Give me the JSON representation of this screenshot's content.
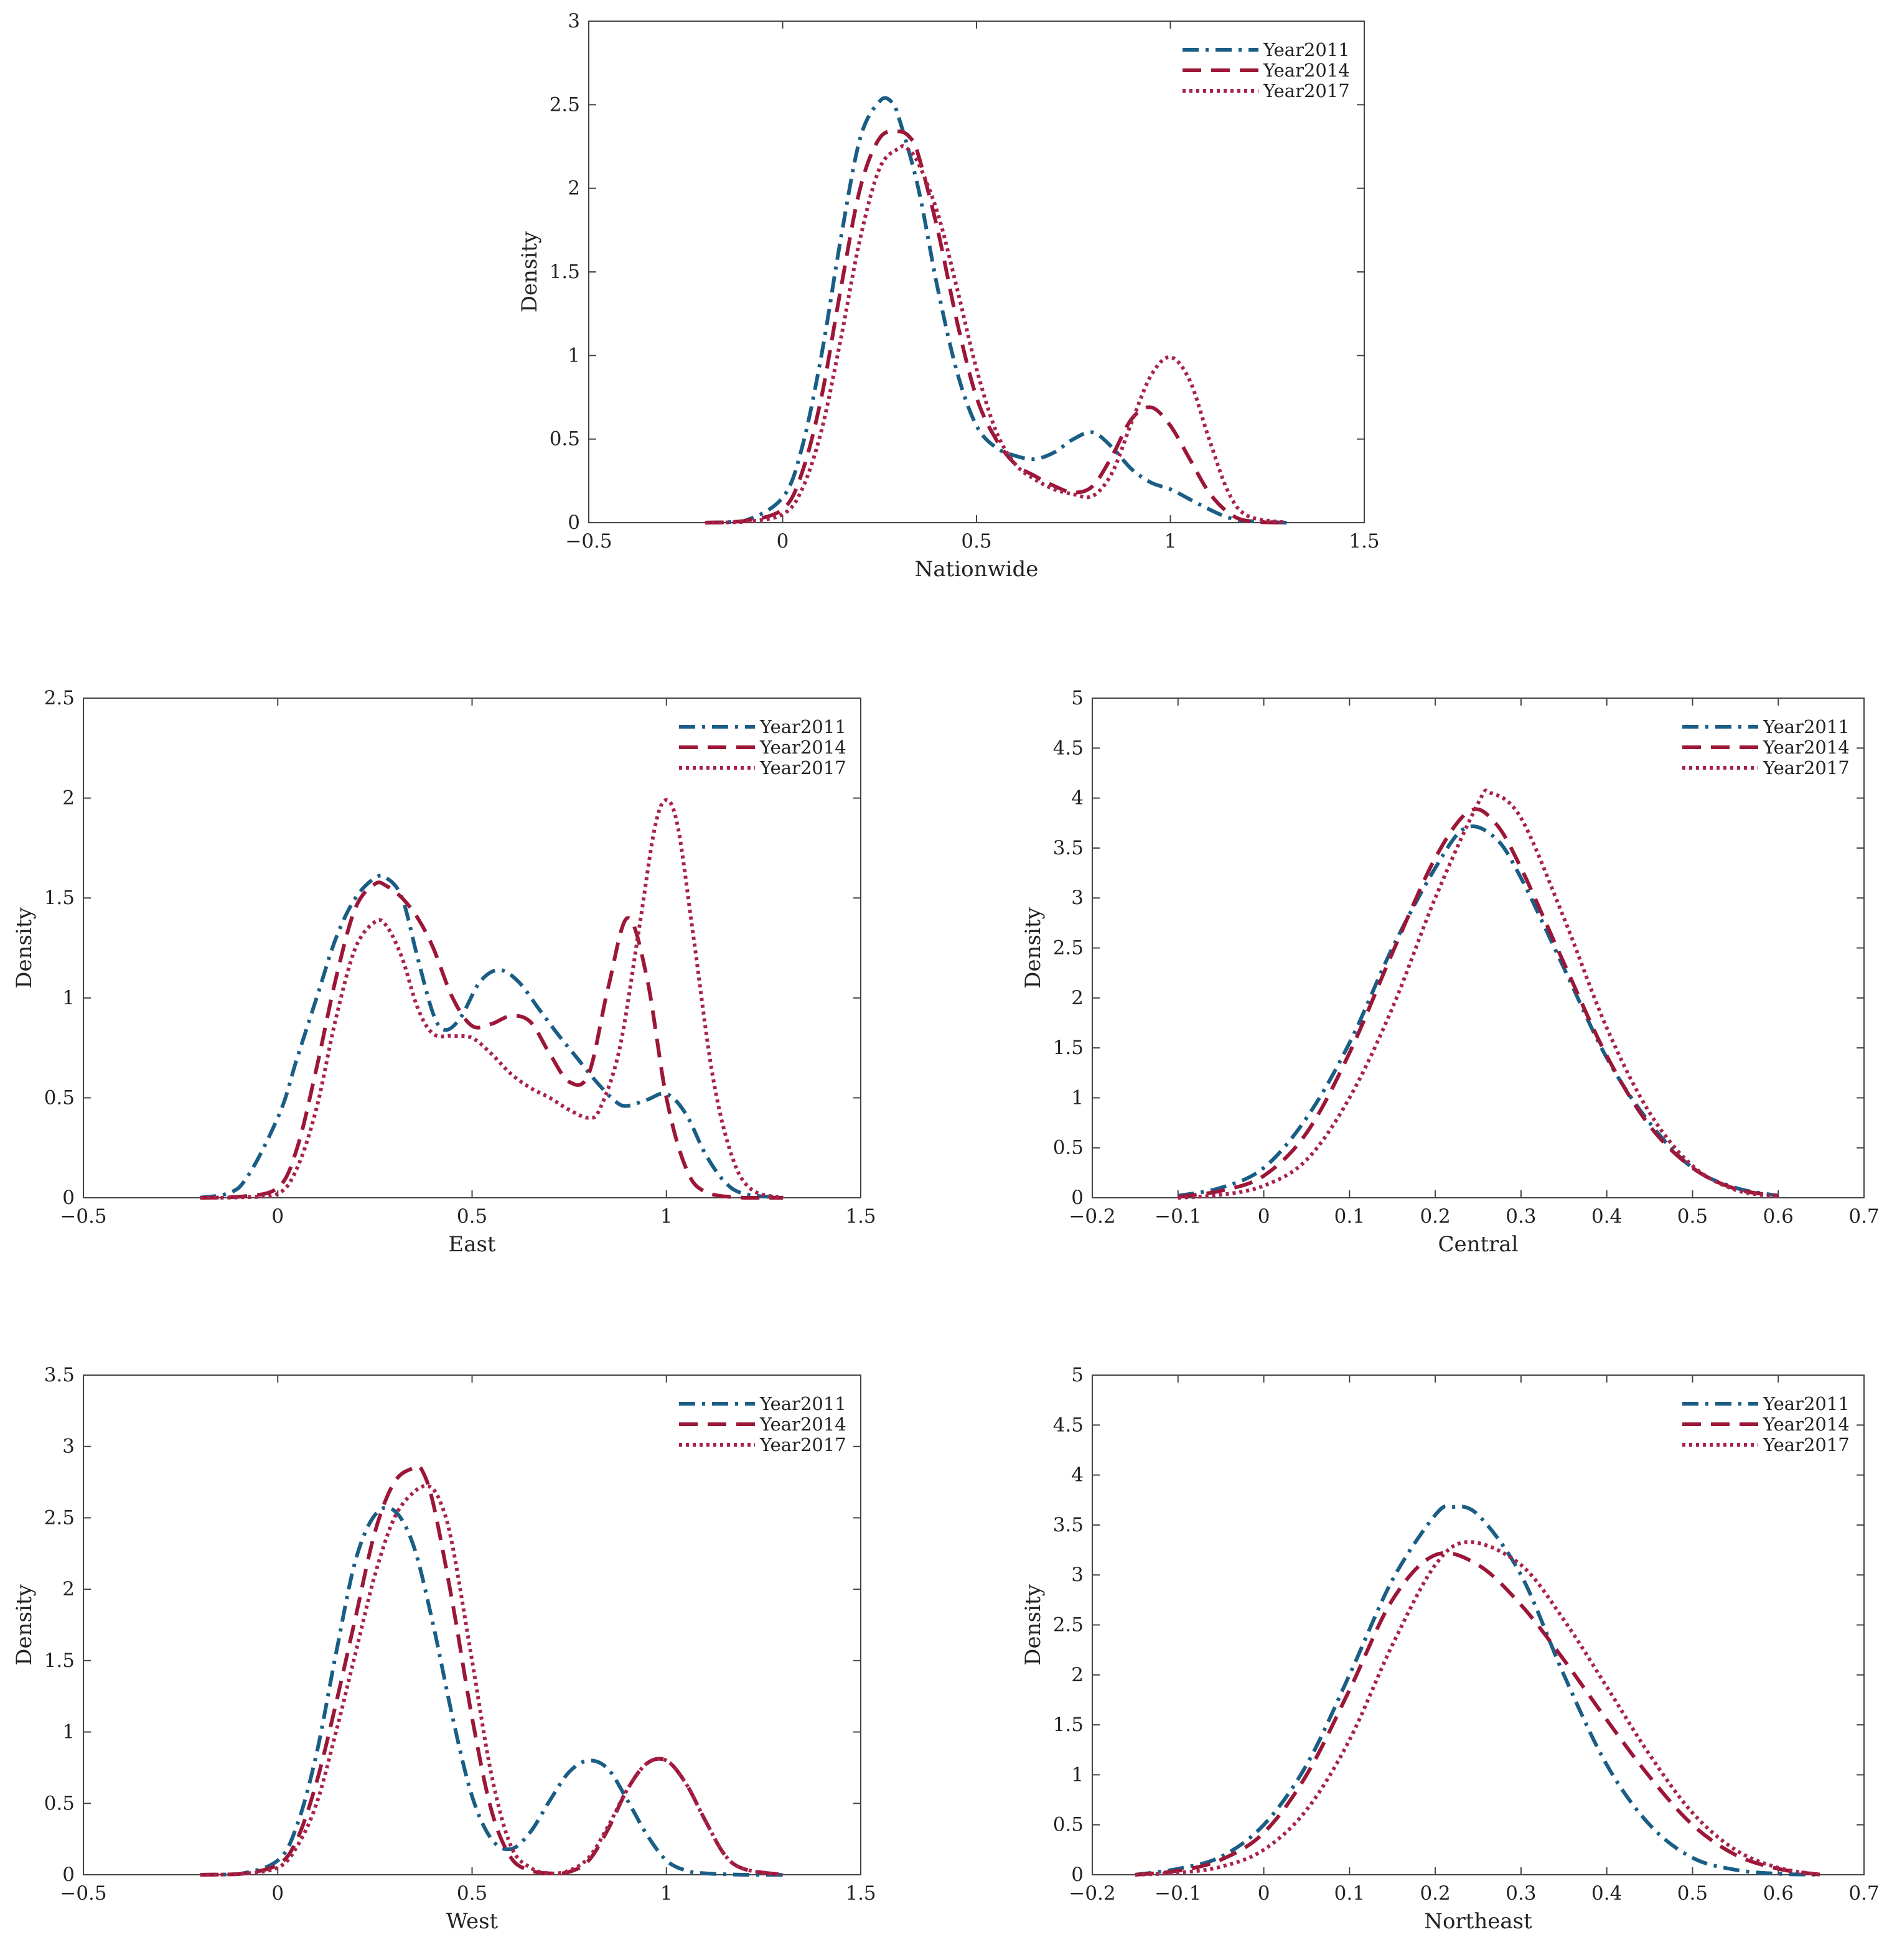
{
  "colors": {
    "year2011": "#1a5e86",
    "year2014": "#9c1737",
    "year2017": "#a8234a",
    "axis": "#444444"
  },
  "chart_data": [
    {
      "type": "line",
      "title": "",
      "xlabel": "Nationwide",
      "ylabel": "Density",
      "xlim": [
        -0.5,
        1.5
      ],
      "ylim": [
        0,
        3
      ],
      "xticks": [
        -0.5,
        0,
        0.5,
        1,
        1.5
      ],
      "xtick_labels": [
        "−0.5",
        "0",
        "0.5",
        "1",
        "1.5"
      ],
      "yticks": [
        0,
        0.5,
        1,
        1.5,
        2,
        2.5,
        3
      ],
      "ytick_labels": [
        "0",
        "0.5",
        "1",
        "1.5",
        "2",
        "2.5",
        "3"
      ],
      "grid": false,
      "legend": "top-right",
      "series": [
        {
          "name": "Year2011",
          "style": "dashdot",
          "color_key": "year2011",
          "x": [
            -0.2,
            -0.1,
            0,
            0.05,
            0.1,
            0.15,
            0.2,
            0.25,
            0.28,
            0.3,
            0.35,
            0.4,
            0.45,
            0.5,
            0.55,
            0.6,
            0.65,
            0.7,
            0.75,
            0.8,
            0.85,
            0.9,
            0.95,
            1.0,
            1.05,
            1.1,
            1.15,
            1.2,
            1.3
          ],
          "y": [
            0,
            0.01,
            0.15,
            0.45,
            1.0,
            1.7,
            2.3,
            2.52,
            2.52,
            2.42,
            2.0,
            1.4,
            0.9,
            0.58,
            0.45,
            0.4,
            0.38,
            0.42,
            0.5,
            0.54,
            0.45,
            0.32,
            0.24,
            0.2,
            0.14,
            0.08,
            0.03,
            0.01,
            0
          ]
        },
        {
          "name": "Year2014",
          "style": "dash",
          "color_key": "year2014",
          "x": [
            -0.2,
            -0.1,
            0,
            0.05,
            0.1,
            0.15,
            0.2,
            0.25,
            0.3,
            0.33,
            0.35,
            0.4,
            0.45,
            0.5,
            0.55,
            0.6,
            0.65,
            0.7,
            0.75,
            0.8,
            0.85,
            0.9,
            0.95,
            1.0,
            1.05,
            1.1,
            1.15,
            1.2,
            1.3
          ],
          "y": [
            0,
            0.01,
            0.08,
            0.3,
            0.75,
            1.4,
            2.0,
            2.3,
            2.34,
            2.3,
            2.2,
            1.75,
            1.2,
            0.75,
            0.5,
            0.35,
            0.28,
            0.22,
            0.18,
            0.22,
            0.4,
            0.62,
            0.69,
            0.58,
            0.38,
            0.18,
            0.06,
            0.01,
            0
          ]
        },
        {
          "name": "Year2017",
          "style": "dot",
          "color_key": "year2017",
          "x": [
            -0.2,
            -0.1,
            0,
            0.05,
            0.1,
            0.15,
            0.2,
            0.25,
            0.3,
            0.32,
            0.35,
            0.4,
            0.45,
            0.5,
            0.55,
            0.6,
            0.65,
            0.7,
            0.75,
            0.8,
            0.85,
            0.9,
            0.95,
            1.0,
            1.05,
            1.1,
            1.15,
            1.2,
            1.3
          ],
          "y": [
            0,
            0.005,
            0.05,
            0.2,
            0.55,
            1.1,
            1.7,
            2.12,
            2.24,
            2.24,
            2.15,
            1.85,
            1.4,
            0.92,
            0.55,
            0.35,
            0.26,
            0.2,
            0.17,
            0.16,
            0.3,
            0.6,
            0.88,
            0.99,
            0.85,
            0.5,
            0.18,
            0.04,
            0
          ]
        }
      ]
    },
    {
      "type": "line",
      "title": "",
      "xlabel": "East",
      "ylabel": "Density",
      "xlim": [
        -0.5,
        1.5
      ],
      "ylim": [
        0,
        2.5
      ],
      "xticks": [
        -0.5,
        0,
        0.5,
        1,
        1.5
      ],
      "xtick_labels": [
        "−0.5",
        "0",
        "0.5",
        "1",
        "1.5"
      ],
      "yticks": [
        0,
        0.5,
        1,
        1.5,
        2,
        2.5
      ],
      "ytick_labels": [
        "0",
        "0.5",
        "1",
        "1.5",
        "2",
        "2.5"
      ],
      "grid": false,
      "legend": "top-right",
      "series": [
        {
          "name": "Year2011",
          "style": "dashdot",
          "color_key": "year2011",
          "x": [
            -0.2,
            -0.1,
            0,
            0.05,
            0.1,
            0.15,
            0.2,
            0.25,
            0.28,
            0.32,
            0.36,
            0.4,
            0.43,
            0.47,
            0.52,
            0.57,
            0.62,
            0.67,
            0.72,
            0.77,
            0.82,
            0.87,
            0.9,
            0.95,
            1.0,
            1.05,
            1.1,
            1.15,
            1.2,
            1.3
          ],
          "y": [
            0,
            0.05,
            0.4,
            0.7,
            1.0,
            1.3,
            1.5,
            1.6,
            1.6,
            1.5,
            1.2,
            0.92,
            0.84,
            0.9,
            1.08,
            1.14,
            1.08,
            0.95,
            0.82,
            0.7,
            0.58,
            0.48,
            0.46,
            0.49,
            0.52,
            0.42,
            0.22,
            0.08,
            0.02,
            0
          ]
        },
        {
          "name": "Year2014",
          "style": "dash",
          "color_key": "year2014",
          "x": [
            -0.2,
            -0.1,
            0,
            0.05,
            0.1,
            0.15,
            0.2,
            0.25,
            0.28,
            0.32,
            0.36,
            0.4,
            0.45,
            0.5,
            0.55,
            0.6,
            0.65,
            0.7,
            0.75,
            0.8,
            0.85,
            0.9,
            0.95,
            1.0,
            1.05,
            1.1,
            1.2,
            1.3
          ],
          "y": [
            0,
            0.005,
            0.05,
            0.25,
            0.65,
            1.1,
            1.45,
            1.57,
            1.56,
            1.5,
            1.4,
            1.25,
            1.0,
            0.86,
            0.87,
            0.91,
            0.88,
            0.72,
            0.58,
            0.62,
            1.05,
            1.4,
            1.1,
            0.5,
            0.15,
            0.03,
            0,
            0
          ]
        },
        {
          "name": "Year2017",
          "style": "dot",
          "color_key": "year2017",
          "x": [
            -0.2,
            -0.1,
            0,
            0.05,
            0.1,
            0.15,
            0.2,
            0.25,
            0.28,
            0.32,
            0.36,
            0.4,
            0.45,
            0.5,
            0.55,
            0.6,
            0.65,
            0.7,
            0.75,
            0.8,
            0.83,
            0.88,
            0.93,
            0.97,
            1.0,
            1.03,
            1.07,
            1.12,
            1.17,
            1.22,
            1.3
          ],
          "y": [
            0,
            0.002,
            0.02,
            0.15,
            0.45,
            0.9,
            1.25,
            1.38,
            1.36,
            1.2,
            0.95,
            0.82,
            0.81,
            0.8,
            0.72,
            0.62,
            0.55,
            0.5,
            0.44,
            0.4,
            0.45,
            0.75,
            1.35,
            1.85,
            1.99,
            1.85,
            1.3,
            0.6,
            0.2,
            0.04,
            0
          ]
        }
      ]
    },
    {
      "type": "line",
      "title": "",
      "xlabel": "Central",
      "ylabel": "Density",
      "xlim": [
        -0.2,
        0.7
      ],
      "ylim": [
        0,
        5
      ],
      "xticks": [
        -0.2,
        -0.1,
        0,
        0.1,
        0.2,
        0.3,
        0.4,
        0.5,
        0.6,
        0.7
      ],
      "xtick_labels": [
        "−0.2",
        "−0.1",
        "0",
        "0.1",
        "0.2",
        "0.3",
        "0.4",
        "0.5",
        "0.6",
        "0.7"
      ],
      "yticks": [
        0,
        0.5,
        1,
        1.5,
        2,
        2.5,
        3,
        3.5,
        4,
        4.5,
        5
      ],
      "ytick_labels": [
        "0",
        "0.5",
        "1",
        "1.5",
        "2",
        "2.5",
        "3",
        "3.5",
        "4",
        "4.5",
        "5"
      ],
      "grid": false,
      "legend": "top-right",
      "series": [
        {
          "name": "Year2011",
          "style": "dashdot",
          "color_key": "year2011",
          "x": [
            -0.1,
            -0.05,
            0,
            0.05,
            0.1,
            0.15,
            0.2,
            0.235,
            0.27,
            0.3,
            0.35,
            0.4,
            0.45,
            0.5,
            0.55,
            0.6
          ],
          "y": [
            0.02,
            0.1,
            0.3,
            0.8,
            1.55,
            2.5,
            3.3,
            3.7,
            3.6,
            3.2,
            2.3,
            1.4,
            0.75,
            0.3,
            0.1,
            0.02
          ]
        },
        {
          "name": "Year2014",
          "style": "dash",
          "color_key": "year2014",
          "x": [
            -0.1,
            -0.05,
            0,
            0.05,
            0.1,
            0.15,
            0.2,
            0.24,
            0.27,
            0.3,
            0.35,
            0.4,
            0.45,
            0.5,
            0.55,
            0.6
          ],
          "y": [
            0.01,
            0.07,
            0.22,
            0.65,
            1.45,
            2.45,
            3.4,
            3.87,
            3.75,
            3.3,
            2.35,
            1.42,
            0.72,
            0.3,
            0.09,
            0.02
          ]
        },
        {
          "name": "Year2017",
          "style": "dot",
          "color_key": "year2017",
          "x": [
            -0.1,
            -0.05,
            0,
            0.05,
            0.1,
            0.15,
            0.2,
            0.25,
            0.265,
            0.3,
            0.35,
            0.4,
            0.45,
            0.5,
            0.55,
            0.6
          ],
          "y": [
            0,
            0.03,
            0.12,
            0.38,
            1.0,
            1.9,
            3.0,
            3.95,
            4.05,
            3.8,
            2.8,
            1.7,
            0.85,
            0.32,
            0.08,
            0.01
          ]
        }
      ]
    },
    {
      "type": "line",
      "title": "",
      "xlabel": "West",
      "ylabel": "Density",
      "xlim": [
        -0.5,
        1.5
      ],
      "ylim": [
        0,
        3.5
      ],
      "xticks": [
        -0.5,
        0,
        0.5,
        1,
        1.5
      ],
      "xtick_labels": [
        "−0.5",
        "0",
        "0.5",
        "1",
        "1.5"
      ],
      "yticks": [
        0,
        0.5,
        1,
        1.5,
        2,
        2.5,
        3,
        3.5
      ],
      "ytick_labels": [
        "0",
        "0.5",
        "1",
        "1.5",
        "2",
        "2.5",
        "3",
        "3.5"
      ],
      "grid": false,
      "legend": "top-right",
      "series": [
        {
          "name": "Year2011",
          "style": "dashdot",
          "color_key": "year2011",
          "x": [
            -0.2,
            -0.1,
            0,
            0.05,
            0.1,
            0.15,
            0.2,
            0.25,
            0.3,
            0.35,
            0.4,
            0.45,
            0.5,
            0.55,
            0.6,
            0.65,
            0.7,
            0.75,
            0.8,
            0.85,
            0.9,
            0.95,
            1.0,
            1.05,
            1.1,
            1.2,
            1.3
          ],
          "y": [
            0,
            0.005,
            0.1,
            0.35,
            0.85,
            1.55,
            2.2,
            2.52,
            2.55,
            2.3,
            1.75,
            1.1,
            0.55,
            0.25,
            0.18,
            0.3,
            0.52,
            0.72,
            0.8,
            0.74,
            0.52,
            0.28,
            0.1,
            0.03,
            0.01,
            0,
            0
          ]
        },
        {
          "name": "Year2014",
          "style": "dash",
          "color_key": "year2014",
          "x": [
            -0.2,
            -0.1,
            0,
            0.05,
            0.1,
            0.15,
            0.2,
            0.25,
            0.3,
            0.35,
            0.37,
            0.4,
            0.45,
            0.5,
            0.55,
            0.6,
            0.65,
            0.7,
            0.75,
            0.8,
            0.85,
            0.9,
            0.95,
            1.0,
            1.05,
            1.1,
            1.15,
            1.2,
            1.3
          ],
          "y": [
            0,
            0.005,
            0.07,
            0.25,
            0.65,
            1.2,
            1.8,
            2.4,
            2.75,
            2.85,
            2.84,
            2.6,
            1.9,
            1.1,
            0.45,
            0.12,
            0.03,
            0.01,
            0.02,
            0.1,
            0.32,
            0.6,
            0.78,
            0.8,
            0.64,
            0.38,
            0.14,
            0.04,
            0
          ]
        },
        {
          "name": "Year2017",
          "style": "dot",
          "color_key": "year2017",
          "x": [
            -0.2,
            -0.1,
            0,
            0.05,
            0.1,
            0.15,
            0.2,
            0.25,
            0.3,
            0.35,
            0.39,
            0.42,
            0.45,
            0.5,
            0.55,
            0.6,
            0.65,
            0.7,
            0.75,
            0.8,
            0.85,
            0.9,
            0.95,
            1.0,
            1.05,
            1.1,
            1.15,
            1.2,
            1.3
          ],
          "y": [
            0,
            0.005,
            0.05,
            0.2,
            0.5,
            1.0,
            1.55,
            2.1,
            2.5,
            2.68,
            2.72,
            2.6,
            2.3,
            1.5,
            0.7,
            0.2,
            0.05,
            0.01,
            0.03,
            0.12,
            0.34,
            0.6,
            0.78,
            0.8,
            0.64,
            0.38,
            0.14,
            0.04,
            0
          ]
        }
      ]
    },
    {
      "type": "line",
      "title": "",
      "xlabel": "Northeast",
      "ylabel": "Density",
      "xlim": [
        -0.2,
        0.7
      ],
      "ylim": [
        0,
        5
      ],
      "xticks": [
        -0.2,
        -0.1,
        0,
        0.1,
        0.2,
        0.3,
        0.4,
        0.5,
        0.6,
        0.7
      ],
      "xtick_labels": [
        "−0.2",
        "−0.1",
        "0",
        "0.1",
        "0.2",
        "0.3",
        "0.4",
        "0.5",
        "0.6",
        "0.7"
      ],
      "yticks": [
        0,
        0.5,
        1,
        1.5,
        2,
        2.5,
        3,
        3.5,
        4,
        4.5,
        5
      ],
      "ytick_labels": [
        "0",
        "0.5",
        "1",
        "1.5",
        "2",
        "2.5",
        "3",
        "3.5",
        "4",
        "4.5",
        "5"
      ],
      "grid": false,
      "legend": "top-right",
      "series": [
        {
          "name": "Year2011",
          "style": "dashdot",
          "color_key": "year2011",
          "x": [
            -0.15,
            -0.1,
            -0.05,
            0,
            0.05,
            0.1,
            0.15,
            0.2,
            0.22,
            0.25,
            0.3,
            0.35,
            0.4,
            0.45,
            0.5,
            0.55,
            0.6,
            0.65
          ],
          "y": [
            0,
            0.06,
            0.18,
            0.5,
            1.1,
            2.0,
            2.95,
            3.6,
            3.68,
            3.6,
            3.0,
            2.0,
            1.1,
            0.5,
            0.17,
            0.05,
            0.01,
            0
          ]
        },
        {
          "name": "Year2014",
          "style": "dash",
          "color_key": "year2014",
          "x": [
            -0.15,
            -0.1,
            -0.05,
            0,
            0.05,
            0.1,
            0.15,
            0.2,
            0.25,
            0.3,
            0.35,
            0.4,
            0.45,
            0.5,
            0.55,
            0.6,
            0.65
          ],
          "y": [
            0,
            0.04,
            0.15,
            0.42,
            1.0,
            1.85,
            2.75,
            3.2,
            3.1,
            2.7,
            2.15,
            1.55,
            0.98,
            0.5,
            0.2,
            0.06,
            0
          ]
        },
        {
          "name": "Year2017",
          "style": "dot",
          "color_key": "year2017",
          "x": [
            -0.15,
            -0.1,
            -0.05,
            0,
            0.05,
            0.1,
            0.15,
            0.2,
            0.24,
            0.3,
            0.35,
            0.4,
            0.45,
            0.5,
            0.55,
            0.6,
            0.65
          ],
          "y": [
            0,
            0.02,
            0.08,
            0.25,
            0.65,
            1.35,
            2.3,
            3.1,
            3.33,
            3.1,
            2.55,
            1.88,
            1.2,
            0.62,
            0.25,
            0.07,
            0
          ]
        }
      ]
    }
  ]
}
